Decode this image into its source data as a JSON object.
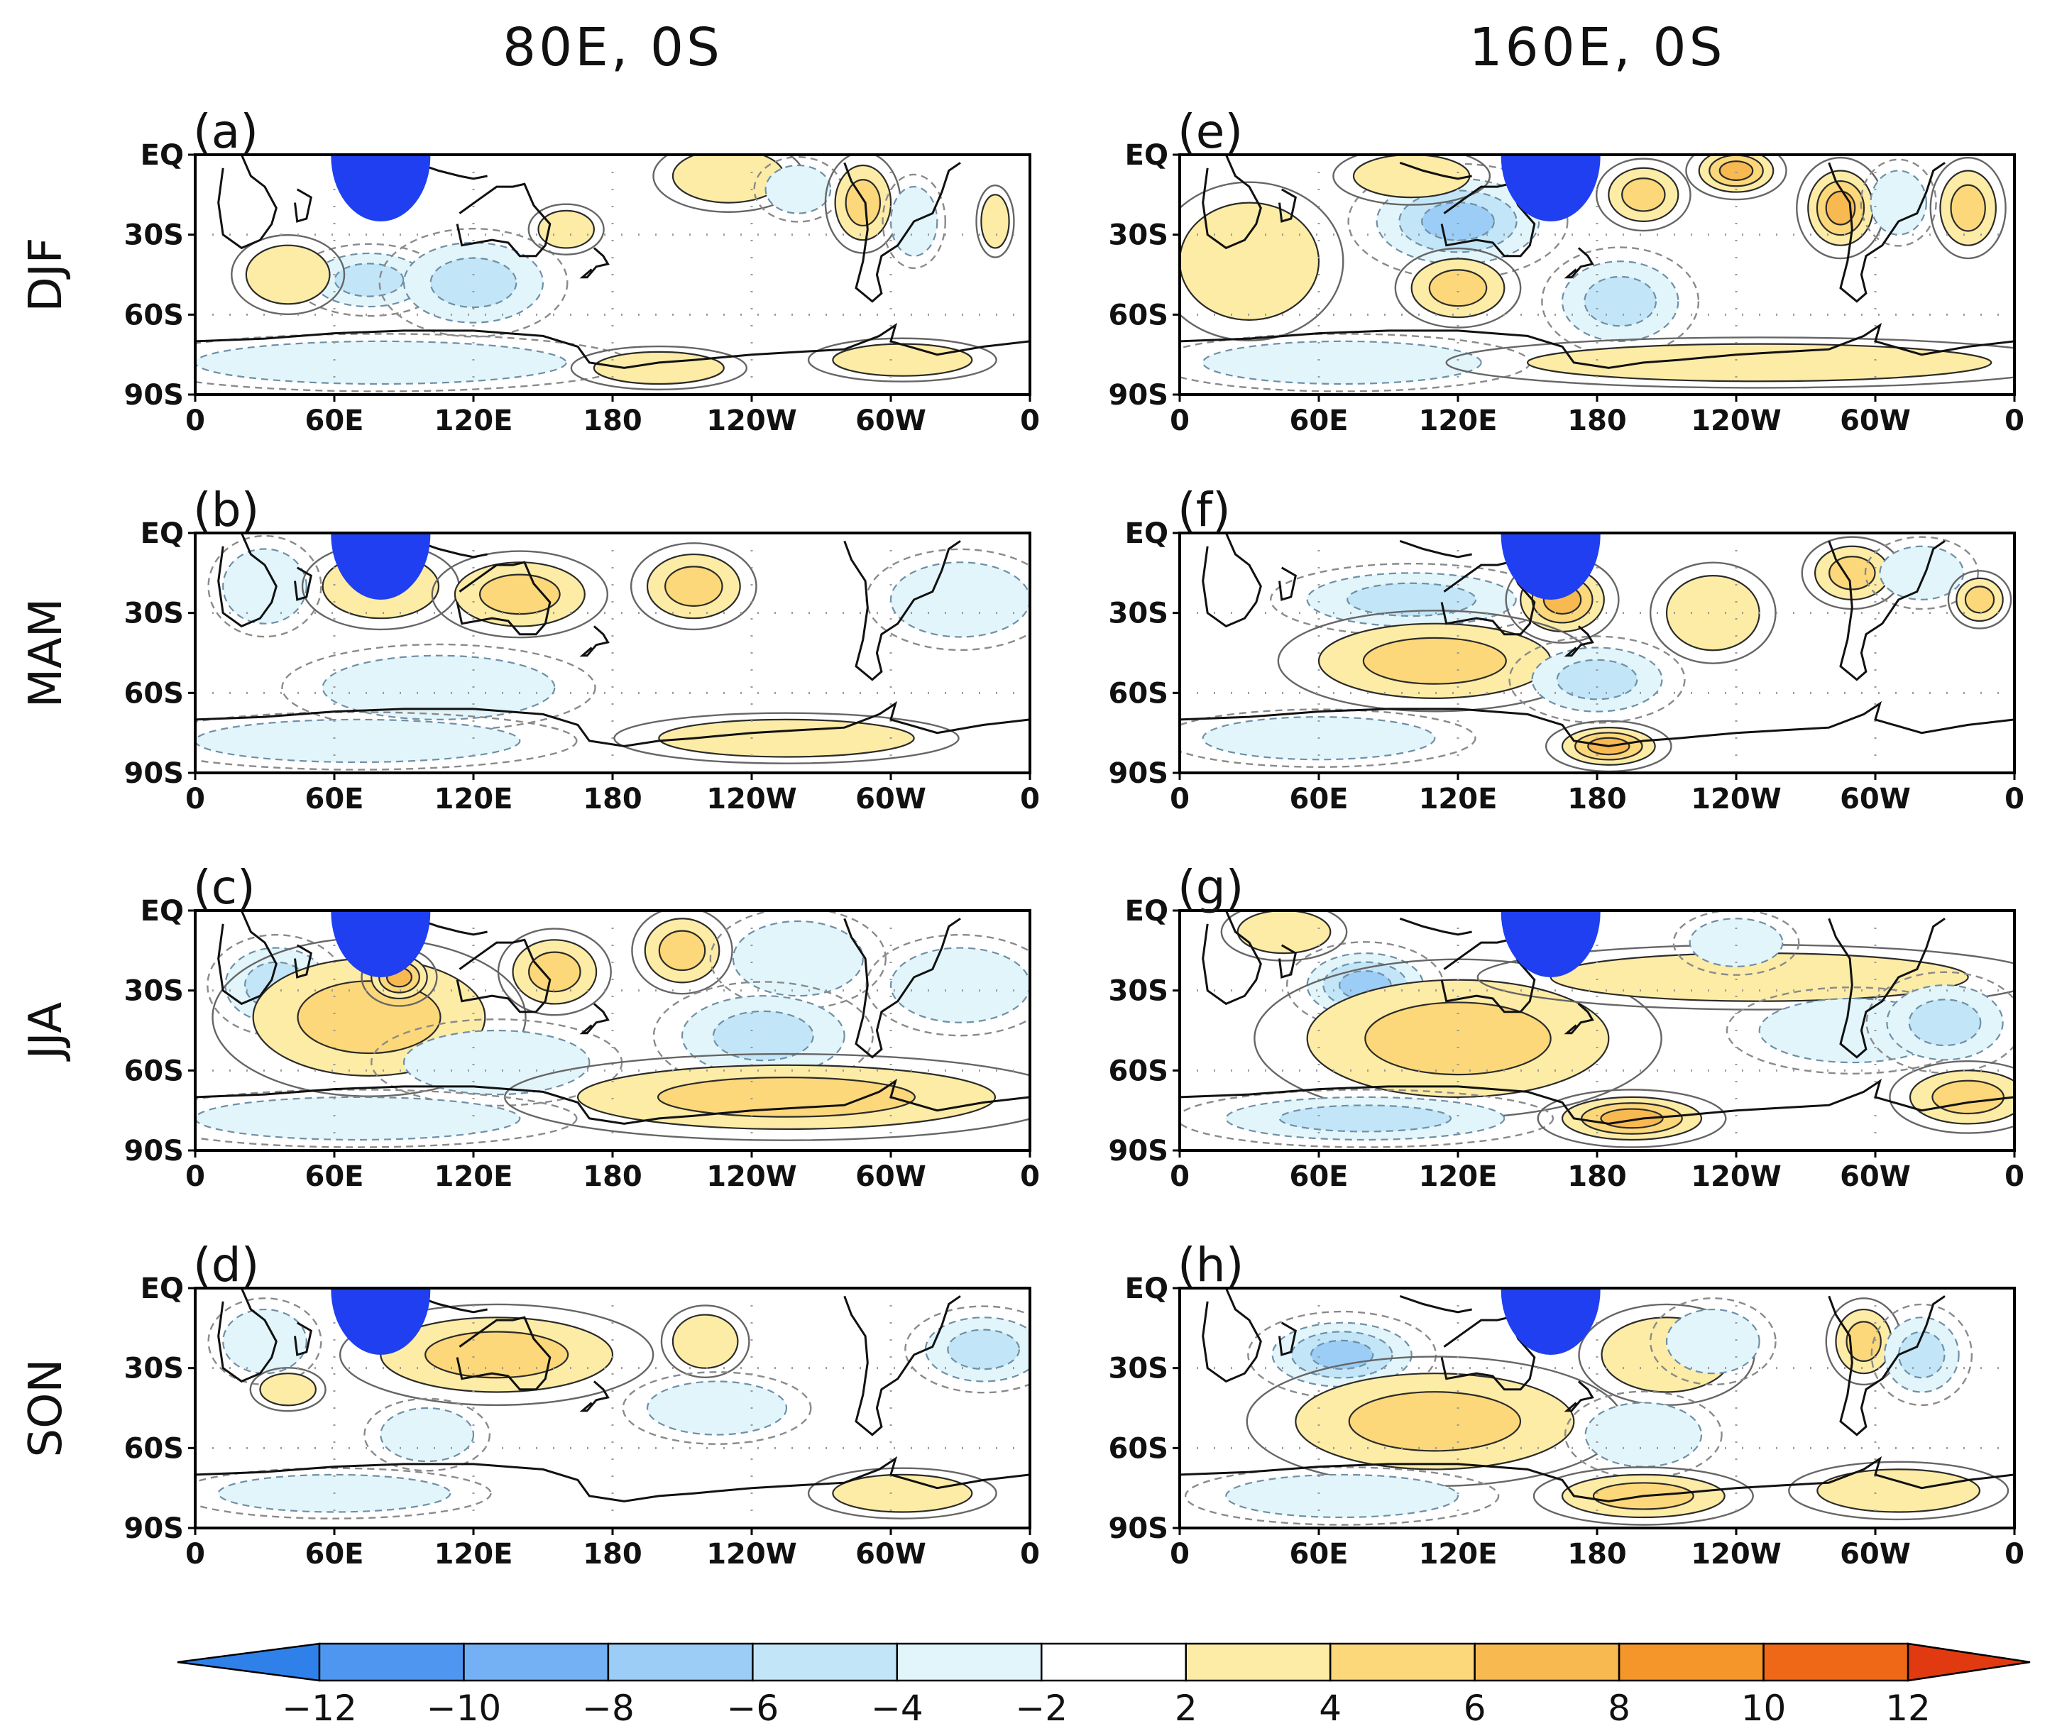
{
  "chart_data": {
    "type": "heatmap",
    "description_columns": [
      "80E, 0S",
      "160E, 0S"
    ],
    "rows": [
      "DJF",
      "MAM",
      "JJA",
      "SON"
    ],
    "panel_labels": [
      "(a)",
      "(b)",
      "(c)",
      "(d)",
      "(e)",
      "(f)",
      "(g)",
      "(h)"
    ],
    "x_ticks": [
      "0",
      "60E",
      "120E",
      "180",
      "120W",
      "60W",
      "0"
    ],
    "y_ticks": [
      "EQ",
      "30S",
      "60S",
      "90S"
    ],
    "xlim_deg": [
      0,
      360
    ],
    "ylim_deg": [
      0,
      -90
    ],
    "forcing_centers": [
      {
        "column": "80E, 0S",
        "lon": 80,
        "lat": 0
      },
      {
        "column": "160E, 0S",
        "lon": 160,
        "lat": 0
      }
    ],
    "colorbar": {
      "ticks": [
        "−12",
        "−10",
        "−8",
        "−6",
        "−4",
        "−2",
        "2",
        "4",
        "6",
        "8",
        "10",
        "12"
      ],
      "levels": [
        -12,
        -10,
        -8,
        -6,
        -4,
        -2,
        2,
        4,
        6,
        8,
        10,
        12
      ],
      "colors": [
        "#2f80e8",
        "#4f96f0",
        "#74b0f4",
        "#9bcdf6",
        "#c2e6f8",
        "#e2f5fb",
        "#ffffff",
        "#fdeca6",
        "#fcd87a",
        "#f9b951",
        "#f5962a",
        "#ef6818",
        "#e23a10",
        "#e23a10"
      ],
      "under_color": "#2f80e8",
      "over_color": "#e23a10"
    },
    "panels": [
      {
        "label": "(a)",
        "season": "DJF",
        "center": "80E, 0S",
        "anomalies": [
          {
            "lon": 75,
            "lat": -47,
            "rx": 24,
            "ry": 10,
            "value": -4
          },
          {
            "lon": 40,
            "lat": -45,
            "rx": 18,
            "ry": 11,
            "value": 3
          },
          {
            "lon": 120,
            "lat": -48,
            "rx": 30,
            "ry": 15,
            "value": -4
          },
          {
            "lon": 230,
            "lat": -8,
            "rx": 24,
            "ry": 10,
            "value": 3
          },
          {
            "lon": 260,
            "lat": -13,
            "rx": 14,
            "ry": 9,
            "value": -3
          },
          {
            "lon": 288,
            "lat": -18,
            "rx": 12,
            "ry": 14,
            "value": 5
          },
          {
            "lon": 310,
            "lat": -25,
            "rx": 10,
            "ry": 13,
            "value": -3
          },
          {
            "lon": 345,
            "lat": -25,
            "rx": 6,
            "ry": 10,
            "value": 3
          },
          {
            "lon": 160,
            "lat": -28,
            "rx": 12,
            "ry": 7,
            "value": 3
          },
          {
            "lon": 80,
            "lat": -78,
            "rx": 80,
            "ry": 8,
            "value": -3
          },
          {
            "lon": 200,
            "lat": -80,
            "rx": 28,
            "ry": 6,
            "value": 3
          },
          {
            "lon": 305,
            "lat": -77,
            "rx": 30,
            "ry": 6,
            "value": 3
          }
        ]
      },
      {
        "label": "(b)",
        "season": "MAM",
        "center": "80E, 0S",
        "anomalies": [
          {
            "lon": 30,
            "lat": -20,
            "rx": 18,
            "ry": 14,
            "value": -3
          },
          {
            "lon": 80,
            "lat": -20,
            "rx": 25,
            "ry": 12,
            "value": 3
          },
          {
            "lon": 140,
            "lat": -23,
            "rx": 28,
            "ry": 12,
            "value": 4
          },
          {
            "lon": 215,
            "lat": -20,
            "rx": 20,
            "ry": 12,
            "value": 4
          },
          {
            "lon": 330,
            "lat": -25,
            "rx": 30,
            "ry": 14,
            "value": -3
          },
          {
            "lon": 105,
            "lat": -58,
            "rx": 50,
            "ry": 12,
            "value": -3
          },
          {
            "lon": 70,
            "lat": -78,
            "rx": 70,
            "ry": 8,
            "value": -3
          },
          {
            "lon": 255,
            "lat": -77,
            "rx": 55,
            "ry": 7,
            "value": 3
          }
        ]
      },
      {
        "label": "(c)",
        "season": "JJA",
        "center": "80E, 0S",
        "anomalies": [
          {
            "lon": 35,
            "lat": -28,
            "rx": 22,
            "ry": 14,
            "value": -4
          },
          {
            "lon": 75,
            "lat": -40,
            "rx": 50,
            "ry": 22,
            "value": 4
          },
          {
            "lon": 88,
            "lat": -25,
            "rx": 12,
            "ry": 8,
            "value": 7
          },
          {
            "lon": 155,
            "lat": -23,
            "rx": 18,
            "ry": 12,
            "value": 4
          },
          {
            "lon": 210,
            "lat": -15,
            "rx": 16,
            "ry": 12,
            "value": 4
          },
          {
            "lon": 260,
            "lat": -18,
            "rx": 28,
            "ry": 14,
            "value": -3
          },
          {
            "lon": 245,
            "lat": -47,
            "rx": 35,
            "ry": 15,
            "value": -4
          },
          {
            "lon": 130,
            "lat": -57,
            "rx": 40,
            "ry": 12,
            "value": -3
          },
          {
            "lon": 255,
            "lat": -70,
            "rx": 90,
            "ry": 12,
            "value": 4
          },
          {
            "lon": 70,
            "lat": -78,
            "rx": 70,
            "ry": 8,
            "value": -3
          },
          {
            "lon": 330,
            "lat": -28,
            "rx": 30,
            "ry": 14,
            "value": -3
          }
        ]
      },
      {
        "label": "(d)",
        "season": "SON",
        "center": "80E, 0S",
        "anomalies": [
          {
            "lon": 30,
            "lat": -20,
            "rx": 18,
            "ry": 12,
            "value": -3
          },
          {
            "lon": 130,
            "lat": -25,
            "rx": 50,
            "ry": 14,
            "value": 4
          },
          {
            "lon": 40,
            "lat": -38,
            "rx": 12,
            "ry": 6,
            "value": 3
          },
          {
            "lon": 220,
            "lat": -20,
            "rx": 14,
            "ry": 10,
            "value": 3
          },
          {
            "lon": 225,
            "lat": -45,
            "rx": 30,
            "ry": 10,
            "value": -3
          },
          {
            "lon": 340,
            "lat": -23,
            "rx": 25,
            "ry": 12,
            "value": -4
          },
          {
            "lon": 100,
            "lat": -55,
            "rx": 20,
            "ry": 10,
            "value": -3
          },
          {
            "lon": 60,
            "lat": -77,
            "rx": 50,
            "ry": 7,
            "value": -3
          },
          {
            "lon": 305,
            "lat": -77,
            "rx": 30,
            "ry": 7,
            "value": 3
          }
        ]
      },
      {
        "label": "(e)",
        "season": "DJF",
        "center": "160E, 0S",
        "anomalies": [
          {
            "lon": 30,
            "lat": -40,
            "rx": 30,
            "ry": 22,
            "value": 3
          },
          {
            "lon": 120,
            "lat": -25,
            "rx": 35,
            "ry": 16,
            "value": -6
          },
          {
            "lon": 100,
            "lat": -8,
            "rx": 25,
            "ry": 8,
            "value": 3
          },
          {
            "lon": 200,
            "lat": -15,
            "rx": 15,
            "ry": 10,
            "value": 4
          },
          {
            "lon": 120,
            "lat": -50,
            "rx": 20,
            "ry": 11,
            "value": 4
          },
          {
            "lon": 190,
            "lat": -55,
            "rx": 25,
            "ry": 15,
            "value": -4
          },
          {
            "lon": 240,
            "lat": -6,
            "rx": 16,
            "ry": 8,
            "value": 7
          },
          {
            "lon": 285,
            "lat": -20,
            "rx": 14,
            "ry": 14,
            "value": 6
          },
          {
            "lon": 310,
            "lat": -18,
            "rx": 12,
            "ry": 12,
            "value": -3
          },
          {
            "lon": 340,
            "lat": -20,
            "rx": 12,
            "ry": 14,
            "value": 4
          },
          {
            "lon": 70,
            "lat": -78,
            "rx": 60,
            "ry": 8,
            "value": -3
          },
          {
            "lon": 250,
            "lat": -78,
            "rx": 100,
            "ry": 7,
            "value": 3
          }
        ]
      },
      {
        "label": "(f)",
        "season": "MAM",
        "center": "160E, 0S",
        "anomalies": [
          {
            "lon": 100,
            "lat": -25,
            "rx": 45,
            "ry": 10,
            "value": -4
          },
          {
            "lon": 165,
            "lat": -25,
            "rx": 18,
            "ry": 12,
            "value": 7
          },
          {
            "lon": 110,
            "lat": -48,
            "rx": 50,
            "ry": 14,
            "value": 4
          },
          {
            "lon": 180,
            "lat": -55,
            "rx": 28,
            "ry": 12,
            "value": -4
          },
          {
            "lon": 290,
            "lat": -15,
            "rx": 16,
            "ry": 10,
            "value": 4
          },
          {
            "lon": 320,
            "lat": -15,
            "rx": 18,
            "ry": 10,
            "value": -3
          },
          {
            "lon": 345,
            "lat": -25,
            "rx": 10,
            "ry": 8,
            "value": 4
          },
          {
            "lon": 230,
            "lat": -30,
            "rx": 20,
            "ry": 14,
            "value": 3
          },
          {
            "lon": 60,
            "lat": -77,
            "rx": 50,
            "ry": 8,
            "value": -3
          },
          {
            "lon": 185,
            "lat": -80,
            "rx": 20,
            "ry": 7,
            "value": 6
          }
        ]
      },
      {
        "label": "(g)",
        "season": "JJA",
        "center": "160E, 0S",
        "anomalies": [
          {
            "lon": 80,
            "lat": -28,
            "rx": 25,
            "ry": 12,
            "value": -6
          },
          {
            "lon": 45,
            "lat": -8,
            "rx": 20,
            "ry": 8,
            "value": 3
          },
          {
            "lon": 120,
            "lat": -48,
            "rx": 65,
            "ry": 22,
            "value": 5
          },
          {
            "lon": 250,
            "lat": -25,
            "rx": 90,
            "ry": 9,
            "value": 3
          },
          {
            "lon": 290,
            "lat": -45,
            "rx": 40,
            "ry": 12,
            "value": -3
          },
          {
            "lon": 330,
            "lat": -42,
            "rx": 25,
            "ry": 14,
            "value": -4
          },
          {
            "lon": 240,
            "lat": -12,
            "rx": 20,
            "ry": 9,
            "value": -3
          },
          {
            "lon": 80,
            "lat": -78,
            "rx": 60,
            "ry": 8,
            "value": -4
          },
          {
            "lon": 195,
            "lat": -78,
            "rx": 30,
            "ry": 8,
            "value": 7
          },
          {
            "lon": 340,
            "lat": -70,
            "rx": 25,
            "ry": 10,
            "value": 4
          }
        ]
      },
      {
        "label": "(h)",
        "season": "SON",
        "center": "160E, 0S",
        "anomalies": [
          {
            "lon": 70,
            "lat": -25,
            "rx": 30,
            "ry": 12,
            "value": -6
          },
          {
            "lon": 110,
            "lat": -50,
            "rx": 60,
            "ry": 18,
            "value": 4
          },
          {
            "lon": 210,
            "lat": -25,
            "rx": 28,
            "ry": 14,
            "value": 3
          },
          {
            "lon": 230,
            "lat": -20,
            "rx": 20,
            "ry": 12,
            "value": -3
          },
          {
            "lon": 295,
            "lat": -20,
            "rx": 12,
            "ry": 12,
            "value": 5
          },
          {
            "lon": 320,
            "lat": -25,
            "rx": 16,
            "ry": 14,
            "value": -4
          },
          {
            "lon": 200,
            "lat": -55,
            "rx": 25,
            "ry": 12,
            "value": -3
          },
          {
            "lon": 70,
            "lat": -78,
            "rx": 50,
            "ry": 8,
            "value": -3
          },
          {
            "lon": 200,
            "lat": -78,
            "rx": 35,
            "ry": 8,
            "value": 5
          },
          {
            "lon": 310,
            "lat": -76,
            "rx": 35,
            "ry": 8,
            "value": 3
          }
        ]
      }
    ]
  }
}
